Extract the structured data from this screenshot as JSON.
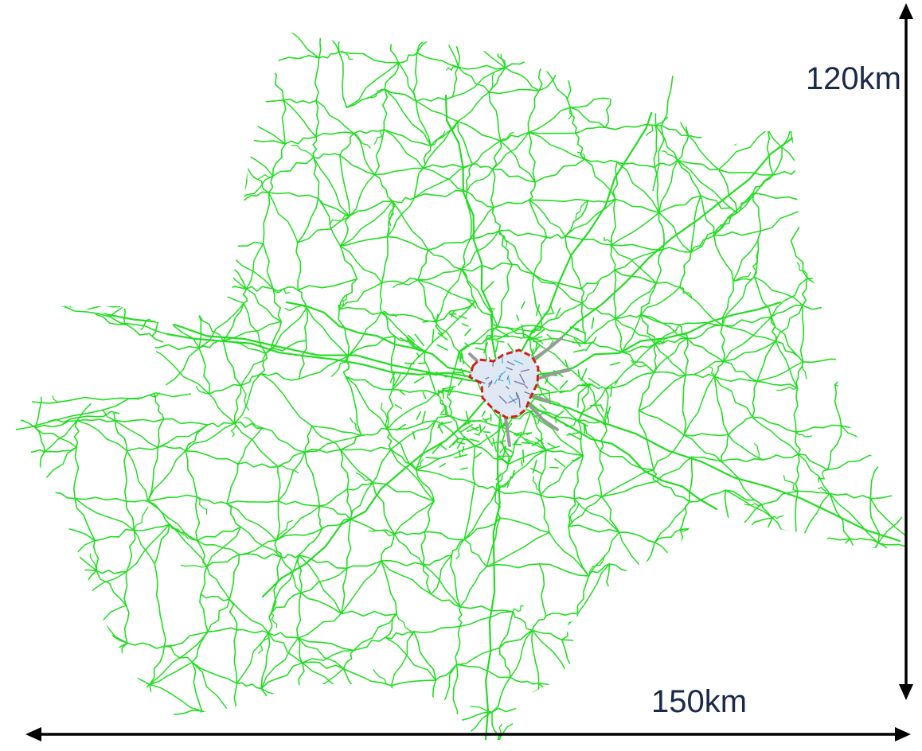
{
  "map": {
    "colors": {
      "road_network": "#22dd22",
      "city_core_boundary": "#cc2222",
      "city_core_fill": "#e0e8f4",
      "city_core_roads": "#7a7aa8",
      "radial_highways": "#9a9a9a",
      "scale_arrows": "#000000",
      "label_text": "#1b2a4a"
    },
    "scale": {
      "height_label": "120km",
      "width_label": "150km"
    }
  }
}
